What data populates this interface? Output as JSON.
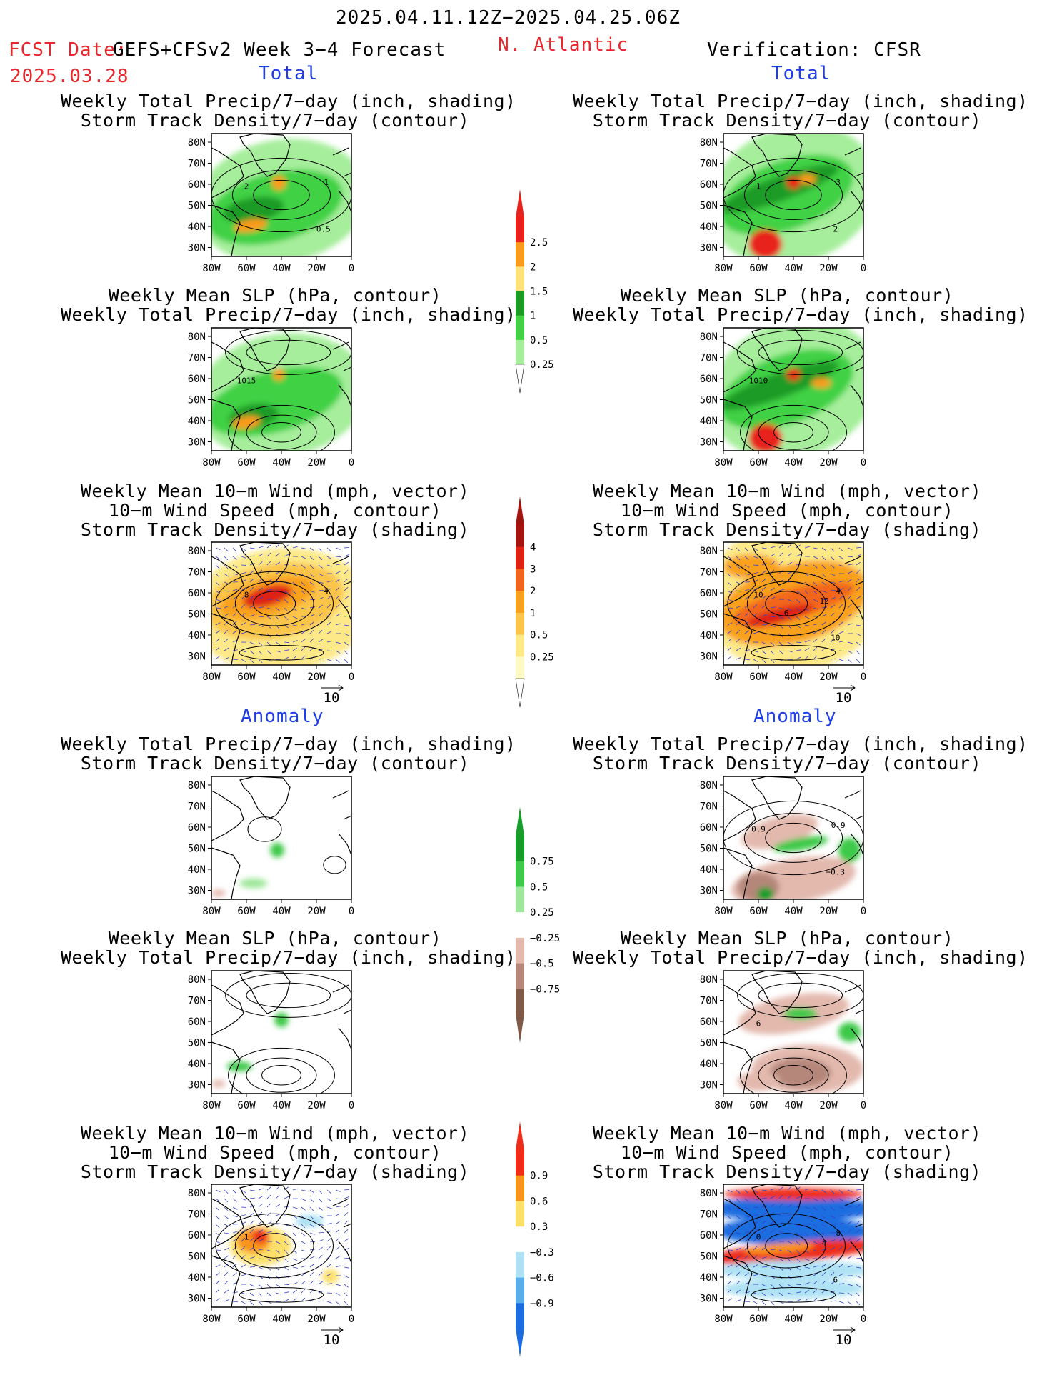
{
  "header": {
    "period": "2025.04.11.12Z−2025.04.25.06Z",
    "fcst_label": "FCST Date:",
    "fcst_model": "GEFS+CFSv2 Week 3−4 Forecast",
    "fcst_date": "2025.03.28",
    "region": "N. Atlantic",
    "verification": "Verification: CFSR",
    "total_left": "Total",
    "total_right": "Total",
    "anom_left": "Anomaly",
    "anom_right": "Anomaly"
  },
  "titles": {
    "precip_storm": [
      "Weekly Total Precip/7−day (inch, shading)",
      "Storm Track Density/7−day (contour)"
    ],
    "slp_precip": [
      "Weekly Mean SLP (hPa, contour)",
      "Weekly Total Precip/7−day (inch, shading)"
    ],
    "wind": [
      "Weekly Mean 10−m Wind (mph, vector)",
      "10−m Wind Speed (mph, contour)",
      "Storm Track Density/7−day (shading)"
    ]
  },
  "axes": {
    "lat_labels": [
      "80N",
      "70N",
      "60N",
      "50N",
      "40N",
      "30N"
    ],
    "lon_labels": [
      "80W",
      "60W",
      "40W",
      "20W",
      "0"
    ]
  },
  "vector_ref": "10",
  "colorbars": {
    "precip_total": {
      "labels": [
        "2.5",
        "2",
        "1.5",
        "1",
        "0.5",
        "0.25"
      ],
      "colors": [
        "#e8221c",
        "#fb9b1a",
        "#fde27b",
        "#1e9b27",
        "#41d144",
        "#a6ee9b"
      ]
    },
    "storm_total": {
      "labels": [
        "4",
        "3",
        "2",
        "1",
        "0.5",
        "0.25"
      ],
      "colors": [
        "#a3140f",
        "#de2213",
        "#f2661b",
        "#f9a11a",
        "#fbc54a",
        "#fde988",
        "#fefbc4"
      ]
    },
    "precip_anom": {
      "labels": [
        "0.75",
        "0.5",
        "0.25",
        "−0.25",
        "−0.5",
        "−0.75"
      ],
      "colors": [
        "#179e2a",
        "#3dc94a",
        "#9ee79a",
        "#ffffff",
        "#e3b9ae",
        "#b5877a",
        "#805a48"
      ]
    },
    "storm_anom": {
      "labels": [
        "0.9",
        "0.6",
        "0.3",
        "−0.3",
        "−0.6",
        "−0.9"
      ],
      "colors": [
        "#ee2d1a",
        "#f9941a",
        "#fde06a",
        "#ffffff",
        "#aee2f4",
        "#5aaeee",
        "#1e6de0"
      ]
    }
  },
  "chart_data": [
    {
      "panel": "forecast-total-precip-storm",
      "type": "heatmap",
      "contour_labels": [
        "2",
        "1",
        "0.5"
      ]
    },
    {
      "panel": "forecast-total-slp-precip",
      "type": "heatmap",
      "contour_labels": [
        "1015"
      ]
    },
    {
      "panel": "forecast-total-wind-storm",
      "type": "heatmap",
      "contour_labels": [
        "8",
        "4"
      ]
    },
    {
      "panel": "verification-total-precip-storm",
      "type": "heatmap",
      "contour_labels": [
        "1",
        "3",
        "2"
      ]
    },
    {
      "panel": "verification-total-slp-precip",
      "type": "heatmap",
      "contour_labels": [
        "1010"
      ]
    },
    {
      "panel": "verification-total-wind-storm",
      "type": "heatmap",
      "contour_labels": [
        "10",
        "4",
        "10",
        "12",
        "6"
      ]
    },
    {
      "panel": "forecast-anom-precip-storm",
      "type": "heatmap",
      "contour_labels": []
    },
    {
      "panel": "forecast-anom-slp-precip",
      "type": "heatmap",
      "contour_labels": []
    },
    {
      "panel": "forecast-anom-wind-storm",
      "type": "heatmap",
      "contour_labels": [
        "1"
      ]
    },
    {
      "panel": "verification-anom-precip-storm",
      "type": "heatmap",
      "contour_labels": [
        "0.9",
        "0.9",
        "−0.3"
      ]
    },
    {
      "panel": "verification-anom-slp-precip",
      "type": "heatmap",
      "contour_labels": [
        "6"
      ]
    },
    {
      "panel": "verification-anom-wind-storm",
      "type": "heatmap",
      "contour_labels": [
        "0",
        "8",
        "6",
        "4"
      ]
    }
  ]
}
